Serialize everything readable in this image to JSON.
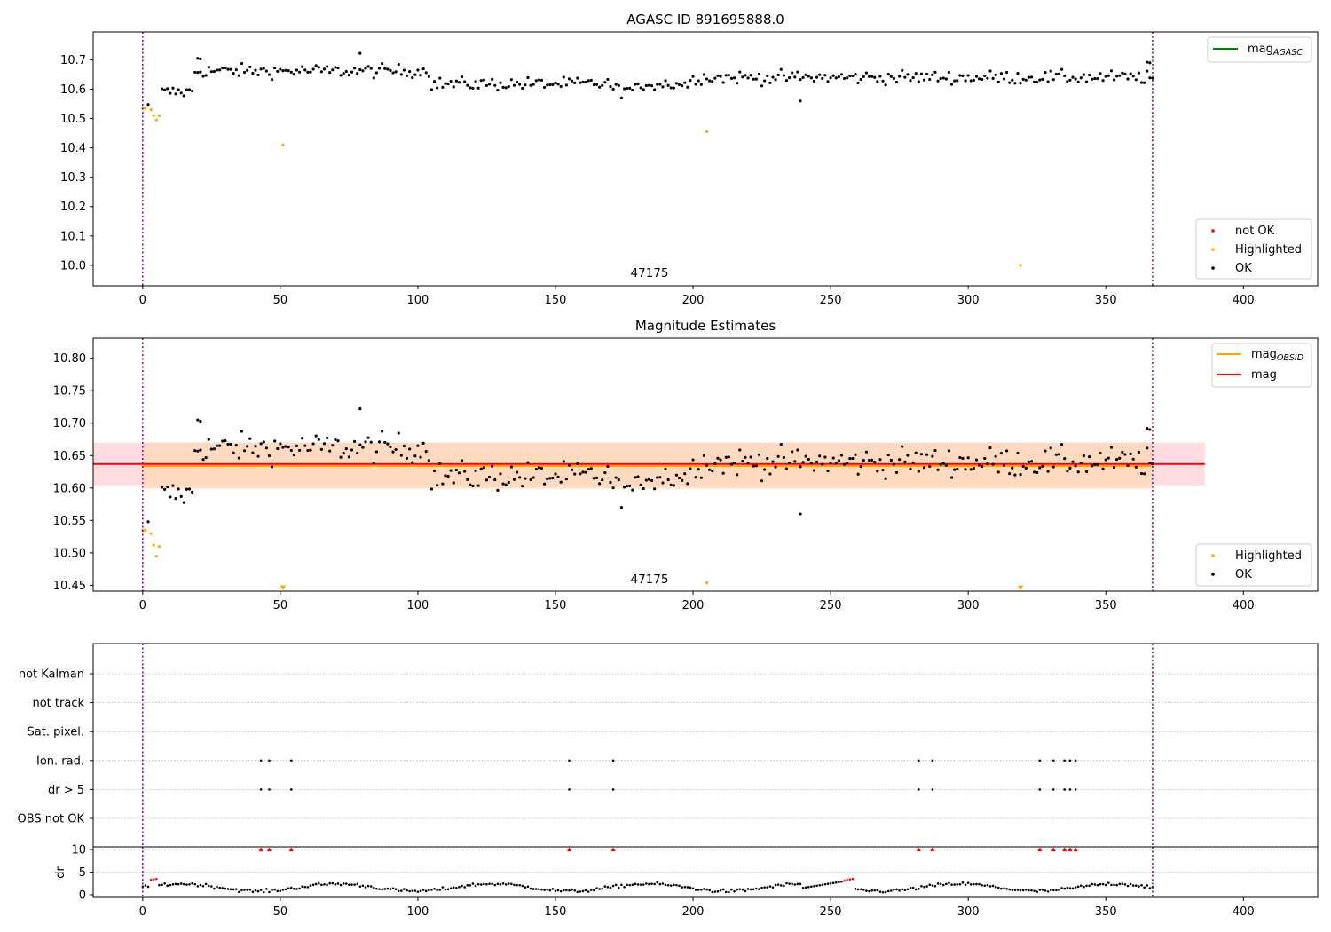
{
  "colors": {
    "ok": "#000000",
    "highlighted": "#ffa500",
    "not_ok": "#ff0000",
    "mag_agasc_line": "#008000",
    "mag_obsid_line": "#ffa500",
    "mag_line": "#ff0000",
    "band_red": "#ffc0cb",
    "band_orange": "#ffdab9",
    "obsid_marker": "#800080"
  },
  "chart_data": [
    {
      "id": "top",
      "type": "scatter",
      "title": "AGASC ID 891695888.0",
      "xlim": [
        -18,
        427
      ],
      "ylim": [
        9.93,
        10.795
      ],
      "xticks": [
        0,
        50,
        100,
        150,
        200,
        250,
        300,
        350,
        400
      ],
      "yticks": [
        "10.0",
        "10.1",
        "10.2",
        "10.3",
        "10.4",
        "10.5",
        "10.6",
        "10.7"
      ],
      "obsid_label": "47175",
      "obsid_lines_x": [
        0,
        367
      ],
      "legend_lines": [
        {
          "label": "mag",
          "sub": "AGASC"
        }
      ],
      "legend_markers": [
        {
          "label": "not OK"
        },
        {
          "label": "Highlighted"
        },
        {
          "label": "OK"
        }
      ],
      "highlighted_points": [
        [
          0,
          10.535
        ],
        [
          1,
          10.535
        ],
        [
          3,
          10.53
        ],
        [
          4,
          10.51
        ],
        [
          5,
          10.495
        ],
        [
          6,
          10.51
        ],
        [
          51,
          10.41
        ],
        [
          205,
          10.455
        ],
        [
          319,
          10.0
        ]
      ]
    },
    {
      "id": "mid",
      "type": "scatter",
      "title": "Magnitude Estimates",
      "xlim": [
        -18,
        427
      ],
      "ylim": [
        10.441,
        10.831
      ],
      "xticks": [
        0,
        50,
        100,
        150,
        200,
        250,
        300,
        350,
        400
      ],
      "yticks": [
        "10.45",
        "10.50",
        "10.55",
        "10.60",
        "10.65",
        "10.70",
        "10.75",
        "10.80"
      ],
      "obsid_label": "47175",
      "obsid_lines_x": [
        0,
        367
      ],
      "mag_value": 10.637,
      "mag_band": [
        10.604,
        10.67
      ],
      "mag_band_x": [
        -18,
        386
      ],
      "mag_obsid_value": 10.634,
      "mag_obsid_band": [
        10.599,
        10.67
      ],
      "mag_obsid_x": [
        0,
        367
      ],
      "legend_lines": [
        {
          "label": "mag",
          "sub": "OBSID"
        },
        {
          "label": "mag",
          "sub": ""
        }
      ],
      "legend_markers": [
        {
          "label": "Highlighted"
        },
        {
          "label": "OK"
        }
      ],
      "highlighted_points": [
        [
          0,
          10.535
        ],
        [
          1,
          10.535
        ],
        [
          3,
          10.53
        ],
        [
          4,
          10.512
        ],
        [
          5,
          10.495
        ],
        [
          6,
          10.51
        ],
        [
          205,
          10.454
        ]
      ],
      "highlighted_offscale": [
        [
          51,
          10.447
        ],
        [
          319,
          10.447
        ]
      ]
    },
    {
      "id": "flags",
      "type": "scatter",
      "categories": [
        "not Kalman",
        "not track",
        "Sat. pixel.",
        "Ion. rad.",
        "dr > 5",
        "OBS not OK"
      ],
      "flag_x": [
        43,
        46,
        54,
        155,
        171,
        282,
        287,
        326,
        331,
        335,
        337,
        339
      ],
      "flag_rows": [
        "Ion. rad.",
        "dr > 5"
      ],
      "xlim": [
        -18,
        427
      ],
      "obsid_lines_x": [
        0,
        367
      ]
    },
    {
      "id": "dr",
      "type": "scatter",
      "ylabel": "dr",
      "xlim": [
        -18,
        427
      ],
      "ylim": [
        -0.6,
        10.6
      ],
      "xticks": [
        0,
        50,
        100,
        150,
        200,
        250,
        300,
        350,
        400
      ],
      "yticks": [
        "0",
        "5",
        "10"
      ],
      "capped_value": 10,
      "obsid_lines_x": [
        0,
        367
      ],
      "capped_x": [
        43,
        46,
        54,
        155,
        171,
        282,
        287,
        326,
        331,
        335,
        337,
        339
      ],
      "red_points": [
        [
          3,
          3.3
        ],
        [
          4,
          3.4
        ],
        [
          5,
          3.5
        ],
        [
          255,
          3.1
        ],
        [
          256,
          3.3
        ],
        [
          257,
          3.4
        ],
        [
          258,
          3.5
        ]
      ]
    }
  ]
}
